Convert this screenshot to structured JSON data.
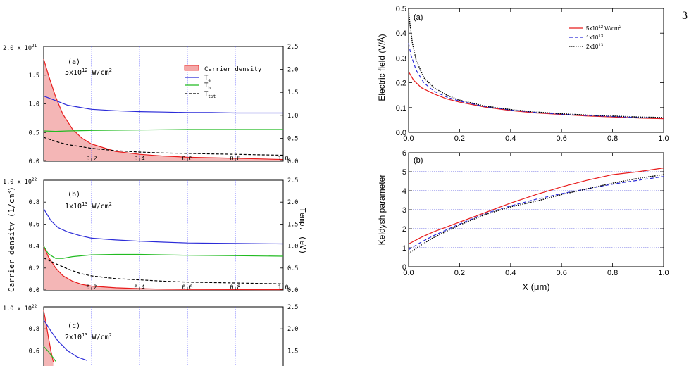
{
  "page_number": "3",
  "left_shared": {
    "ylabel_left": "Carrier density  (1/cm",
    "ylabel_left_sup": "3",
    "ylabel_left_end": ")",
    "ylabel_right": "Temp.  (eV)"
  },
  "chart_data": [
    {
      "id": "a-left",
      "type": "line",
      "panel_label": "(a)",
      "intensity": "5x10",
      "intensity_exp": "12",
      "intensity_unit": " W/cm",
      "intensity_unit_sup": "2",
      "y_left_max_label": "2.0 x 10",
      "y_left_max_exp": "21",
      "y_left_ticks": [
        "0.0",
        "0.5",
        "1.0",
        "1.5"
      ],
      "y_left_ticks_values": [
        0,
        0.5,
        1.0,
        1.5
      ],
      "y_left_range": [
        0,
        2.0
      ],
      "y_right_ticks": [
        "0.0",
        "0.5",
        "1.0",
        "1.5",
        "2.0",
        "2.5"
      ],
      "y_right_range": [
        0,
        2.5
      ],
      "x_ticks": [
        "0.2",
        "0.4",
        "0.6",
        "0.8",
        "1.0"
      ],
      "x_range": [
        0,
        1.0
      ],
      "legend": [
        {
          "label": "Carrier density",
          "sub": "",
          "kind": "fill",
          "color": "#f4a8a8"
        },
        {
          "label": "T",
          "sub": "e",
          "kind": "line",
          "color": "#2b2bd8"
        },
        {
          "label": "T",
          "sub": "h",
          "kind": "line",
          "color": "#22bb22"
        },
        {
          "label": "T",
          "sub": "tot",
          "kind": "dash",
          "color": "#000000"
        }
      ],
      "series": [
        {
          "name": "Carrier density",
          "axis": "left",
          "color": "#e81c1c",
          "x": [
            0.0,
            0.02,
            0.05,
            0.08,
            0.12,
            0.16,
            0.2,
            0.3,
            0.4,
            0.5,
            0.6,
            0.7,
            0.8,
            0.9,
            1.0
          ],
          "y": [
            1.78,
            1.5,
            1.12,
            0.82,
            0.56,
            0.4,
            0.3,
            0.17,
            0.12,
            0.09,
            0.07,
            0.06,
            0.05,
            0.04,
            0.03
          ]
        },
        {
          "name": "T",
          "axis": "right",
          "color": "#2b2bd8",
          "x": [
            0.0,
            0.05,
            0.1,
            0.2,
            0.3,
            0.4,
            0.5,
            0.6,
            0.7,
            0.8,
            0.9,
            1.0
          ],
          "y": [
            1.42,
            1.32,
            1.22,
            1.13,
            1.1,
            1.08,
            1.07,
            1.06,
            1.06,
            1.05,
            1.05,
            1.05
          ]
        },
        {
          "name": "T",
          "axis": "right",
          "color": "#22bb22",
          "x": [
            0.0,
            0.05,
            0.1,
            0.2,
            0.4,
            0.6,
            0.8,
            1.0
          ],
          "y": [
            0.66,
            0.65,
            0.66,
            0.67,
            0.68,
            0.69,
            0.69,
            0.69
          ]
        },
        {
          "name": "T",
          "axis": "right",
          "color": "#000000",
          "dash": true,
          "x": [
            0.0,
            0.05,
            0.1,
            0.2,
            0.3,
            0.4,
            0.5,
            0.6,
            0.7,
            0.8,
            0.9,
            1.0
          ],
          "y": [
            0.52,
            0.43,
            0.36,
            0.28,
            0.23,
            0.2,
            0.18,
            0.17,
            0.16,
            0.15,
            0.14,
            0.13
          ]
        }
      ]
    },
    {
      "id": "b-left",
      "type": "line",
      "panel_label": "(b)",
      "intensity": "1x10",
      "intensity_exp": "13",
      "intensity_unit": " W/cm",
      "intensity_unit_sup": "2",
      "y_left_max_label": "1.0 x 10",
      "y_left_max_exp": "22",
      "y_left_ticks": [
        "0.0",
        "0.2",
        "0.4",
        "0.6",
        "0.8"
      ],
      "y_left_ticks_values": [
        0,
        0.2,
        0.4,
        0.6,
        0.8
      ],
      "y_left_range": [
        0,
        1.0
      ],
      "y_right_ticks": [
        "0.0",
        "0.5",
        "1.0",
        "1.5",
        "2.0",
        "2.5"
      ],
      "y_right_range": [
        0,
        2.5
      ],
      "x_ticks": [
        "0.2",
        "0.4",
        "0.6",
        "0.8",
        "1.0"
      ],
      "x_range": [
        0,
        1.0
      ],
      "series": [
        {
          "name": "Carrier density",
          "axis": "left",
          "color": "#e81c1c",
          "x": [
            0.0,
            0.02,
            0.05,
            0.08,
            0.12,
            0.16,
            0.2,
            0.3,
            0.4,
            0.5,
            0.6,
            0.8,
            1.0
          ],
          "y": [
            0.4,
            0.3,
            0.2,
            0.13,
            0.08,
            0.05,
            0.035,
            0.02,
            0.012,
            0.008,
            0.006,
            0.004,
            0.003
          ]
        },
        {
          "name": "T",
          "axis": "right",
          "color": "#2b2bd8",
          "x": [
            0.0,
            0.03,
            0.06,
            0.1,
            0.15,
            0.2,
            0.3,
            0.4,
            0.5,
            0.6,
            0.8,
            1.0
          ],
          "y": [
            1.85,
            1.58,
            1.42,
            1.32,
            1.24,
            1.18,
            1.14,
            1.11,
            1.09,
            1.07,
            1.06,
            1.05
          ]
        },
        {
          "name": "T",
          "axis": "right",
          "color": "#22bb22",
          "x": [
            0.0,
            0.02,
            0.05,
            0.08,
            0.12,
            0.2,
            0.3,
            0.4,
            0.5,
            0.6,
            0.8,
            1.0
          ],
          "y": [
            1.0,
            0.82,
            0.72,
            0.72,
            0.76,
            0.8,
            0.81,
            0.81,
            0.8,
            0.79,
            0.78,
            0.77
          ]
        },
        {
          "name": "T",
          "axis": "right",
          "color": "#000000",
          "dash": true,
          "x": [
            0.0,
            0.05,
            0.1,
            0.15,
            0.2,
            0.3,
            0.4,
            0.5,
            0.6,
            0.8,
            1.0
          ],
          "y": [
            0.73,
            0.6,
            0.48,
            0.38,
            0.32,
            0.26,
            0.23,
            0.2,
            0.18,
            0.16,
            0.14
          ]
        }
      ]
    },
    {
      "id": "c-left",
      "type": "line",
      "panel_label": "(c)",
      "intensity": "2x10",
      "intensity_exp": "13",
      "intensity_unit": " W/cm",
      "intensity_unit_sup": "2",
      "y_left_max_label": "1.0 x 10",
      "y_left_max_exp": "22",
      "y_left_ticks": [
        "0.6",
        "0.8"
      ],
      "y_left_ticks_values": [
        0.6,
        0.8
      ],
      "y_left_range": [
        0.5,
        1.0
      ],
      "y_right_ticks": [
        "1.5",
        "2.0",
        "2.5"
      ],
      "y_right_range": [
        1.25,
        2.5
      ],
      "series": [
        {
          "name": "Carrier density",
          "axis": "left",
          "color": "#e81c1c",
          "x": [
            0.0,
            0.01,
            0.02,
            0.03,
            0.04
          ],
          "y": [
            0.97,
            0.85,
            0.72,
            0.6,
            0.5
          ]
        },
        {
          "name": "T",
          "axis": "right",
          "color": "#2b2bd8",
          "x": [
            0.0,
            0.01,
            0.03,
            0.06,
            0.1,
            0.14,
            0.18
          ],
          "y": [
            2.2,
            2.12,
            1.95,
            1.72,
            1.5,
            1.36,
            1.28
          ]
        },
        {
          "name": "T",
          "axis": "right",
          "color": "#22bb22",
          "x": [
            0.0,
            0.02,
            0.04,
            0.05
          ],
          "y": [
            1.6,
            1.48,
            1.34,
            1.26
          ]
        }
      ]
    },
    {
      "id": "a-right",
      "type": "line",
      "panel_label": "(a)",
      "ylabel": "Electric field (V/Å)",
      "x_range": [
        0,
        1.0
      ],
      "y_range": [
        0,
        0.5
      ],
      "y_ticks": [
        "0.0",
        "0.1",
        "0.2",
        "0.3",
        "0.4",
        "0.5"
      ],
      "y_ticks_values": [
        0,
        0.1,
        0.2,
        0.3,
        0.4,
        0.5
      ],
      "x_ticks": [
        "0.0",
        "0.2",
        "0.4",
        "0.6",
        "0.8",
        "1.0"
      ],
      "x_ticks_values": [
        0,
        0.2,
        0.4,
        0.6,
        0.8,
        1.0
      ],
      "legend": [
        {
          "label": "5x10",
          "sup": "12",
          "unit": " W/cm",
          "unit_sup": "2",
          "color": "#e81c1c",
          "style": "solid"
        },
        {
          "label": "1x10",
          "sup": "13",
          "unit": "",
          "unit_sup": "",
          "color": "#2b2bd8",
          "style": "dash"
        },
        {
          "label": "2x10",
          "sup": "13",
          "unit": "",
          "unit_sup": "",
          "color": "#000000",
          "style": "dot"
        }
      ],
      "series": [
        {
          "name": "5x10^12 W/cm^2",
          "color": "#e81c1c",
          "style": "solid",
          "x": [
            0.0,
            0.02,
            0.05,
            0.1,
            0.15,
            0.2,
            0.3,
            0.4,
            0.5,
            0.6,
            0.7,
            0.8,
            0.9,
            1.0
          ],
          "y": [
            0.245,
            0.21,
            0.18,
            0.155,
            0.135,
            0.122,
            0.102,
            0.088,
            0.078,
            0.072,
            0.066,
            0.062,
            0.058,
            0.055
          ]
        },
        {
          "name": "1x10^13",
          "color": "#2b2bd8",
          "style": "dash",
          "x": [
            0.0,
            0.01,
            0.03,
            0.06,
            0.1,
            0.15,
            0.2,
            0.3,
            0.4,
            0.5,
            0.6,
            0.7,
            0.8,
            0.9,
            1.0
          ],
          "y": [
            0.36,
            0.31,
            0.25,
            0.2,
            0.166,
            0.142,
            0.126,
            0.104,
            0.09,
            0.08,
            0.073,
            0.068,
            0.064,
            0.06,
            0.058
          ]
        },
        {
          "name": "2x10^13",
          "color": "#000000",
          "style": "dot",
          "x": [
            0.0,
            0.005,
            0.015,
            0.03,
            0.06,
            0.1,
            0.15,
            0.2,
            0.3,
            0.4,
            0.5,
            0.6,
            0.7,
            0.8,
            0.9,
            1.0
          ],
          "y": [
            0.5,
            0.44,
            0.36,
            0.29,
            0.22,
            0.18,
            0.15,
            0.13,
            0.106,
            0.092,
            0.082,
            0.075,
            0.07,
            0.066,
            0.062,
            0.06
          ]
        }
      ]
    },
    {
      "id": "b-right",
      "type": "line",
      "panel_label": "(b)",
      "ylabel": "Keldysh parameter",
      "xlabel": "X (μm)",
      "x_range": [
        0,
        1.0
      ],
      "y_range": [
        0,
        6
      ],
      "y_ticks": [
        "0",
        "1",
        "2",
        "3",
        "4",
        "5",
        "6"
      ],
      "y_ticks_values": [
        0,
        1,
        2,
        3,
        4,
        5,
        6
      ],
      "x_ticks": [
        "0.0",
        "0.2",
        "0.4",
        "0.6",
        "0.8",
        "1.0"
      ],
      "x_ticks_values": [
        0,
        0.2,
        0.4,
        0.6,
        0.8,
        1.0
      ],
      "series": [
        {
          "name": "5x10^12 W/cm^2",
          "color": "#e81c1c",
          "style": "solid",
          "x": [
            0.0,
            0.05,
            0.1,
            0.2,
            0.3,
            0.4,
            0.5,
            0.6,
            0.7,
            0.8,
            0.9,
            1.0
          ],
          "y": [
            1.2,
            1.55,
            1.85,
            2.35,
            2.85,
            3.35,
            3.8,
            4.2,
            4.55,
            4.85,
            5.0,
            5.2
          ]
        },
        {
          "name": "1x10^13",
          "color": "#2b2bd8",
          "style": "dash",
          "x": [
            0.0,
            0.05,
            0.1,
            0.2,
            0.3,
            0.4,
            0.5,
            0.6,
            0.7,
            0.8,
            0.9,
            1.0
          ],
          "y": [
            0.9,
            1.3,
            1.65,
            2.25,
            2.8,
            3.2,
            3.55,
            3.85,
            4.1,
            4.35,
            4.55,
            4.75
          ]
        },
        {
          "name": "2x10^13",
          "color": "#000000",
          "style": "dot",
          "x": [
            0.0,
            0.05,
            0.1,
            0.2,
            0.3,
            0.4,
            0.5,
            0.6,
            0.7,
            0.8,
            0.9,
            1.0
          ],
          "y": [
            0.7,
            1.15,
            1.55,
            2.2,
            2.75,
            3.15,
            3.45,
            3.8,
            4.1,
            4.4,
            4.65,
            4.85
          ]
        }
      ]
    }
  ]
}
